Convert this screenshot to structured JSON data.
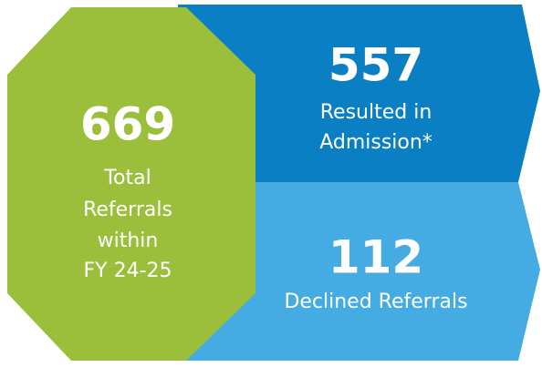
{
  "total": {
    "value": 669,
    "lines": [
      "Total",
      "Referrals",
      "within",
      "FY 24-25"
    ]
  },
  "admission": {
    "value": 557,
    "lines": [
      "Resulted in",
      "Admission*"
    ]
  },
  "declined": {
    "value": 112,
    "lines": [
      "Declined Referrals"
    ]
  }
}
